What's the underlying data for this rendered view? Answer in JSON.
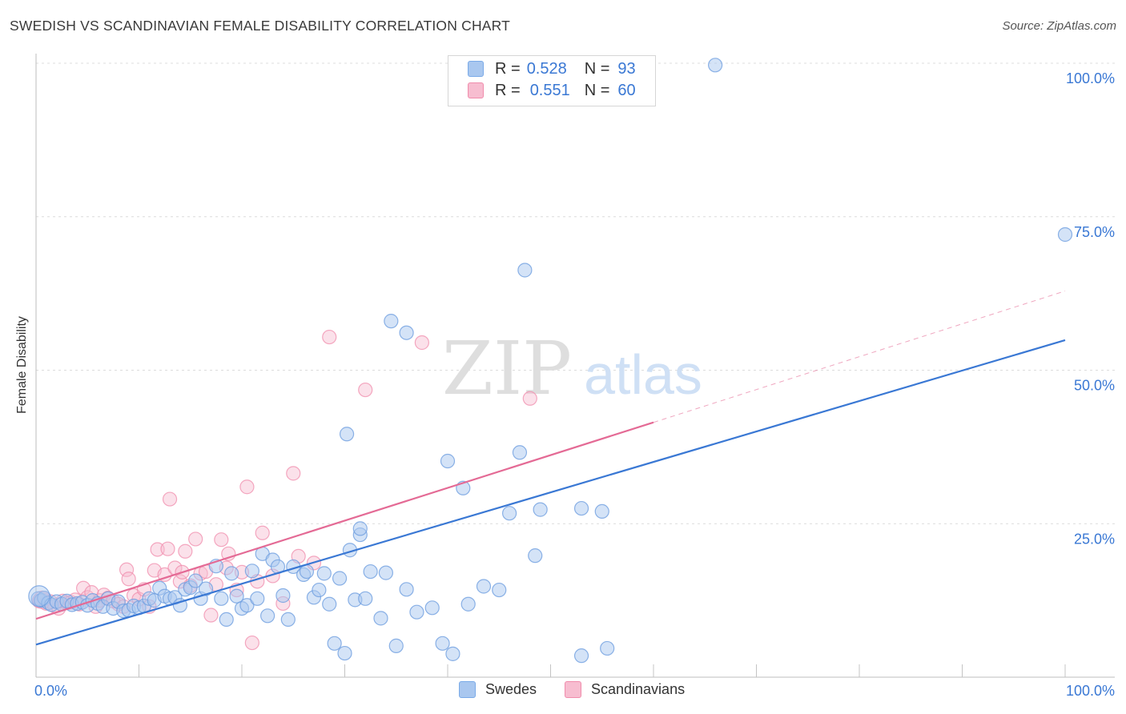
{
  "title": "SWEDISH VS SCANDINAVIAN FEMALE DISABILITY CORRELATION CHART",
  "source": "Source: ZipAtlas.com",
  "watermark": {
    "part1": "ZIP",
    "part2": "atlas"
  },
  "legend": {
    "rows": [
      {
        "r_label": "R =",
        "r_value": "0.528",
        "n_label": "N =",
        "n_value": "93",
        "color": "#7aaae8"
      },
      {
        "r_label": "R =",
        "r_value": "0.551",
        "n_label": "N =",
        "n_value": "60",
        "color": "#f08cac"
      }
    ]
  },
  "bottom_legend": [
    {
      "label": "Swedes",
      "color": "#7aaae8"
    },
    {
      "label": "Scandinavians",
      "color": "#f08cac"
    }
  ],
  "colors": {
    "blue": "#3a78d4",
    "pink": "#e46a95",
    "blue_fill": "#a9c7ef",
    "pink_fill": "#f7bdd0",
    "axis_label": "#3a78d4",
    "grid": "#dcdcdc"
  },
  "chart_data": {
    "type": "scatter",
    "title": "SWEDISH VS SCANDINAVIAN FEMALE DISABILITY CORRELATION CHART",
    "xlabel": "",
    "ylabel": "Female Disability",
    "xlim": [
      0,
      100
    ],
    "ylim": [
      0,
      100
    ],
    "x_tick_labels": [
      "0.0%",
      "100.0%"
    ],
    "y_tick_labels": [
      "25.0%",
      "50.0%",
      "75.0%",
      "100.0%"
    ],
    "y_ticks": [
      25,
      50,
      75,
      100
    ],
    "grid": true,
    "series": [
      {
        "name": "Swedes",
        "R": 0.528,
        "N": 93,
        "color": "#3a78d4",
        "trend": {
          "x0": 0,
          "y0": 5.3,
          "x1": 100,
          "y1": 54.9
        },
        "points": [
          [
            0.2,
            12.8
          ],
          [
            0.5,
            12.5
          ],
          [
            0.8,
            12.9
          ],
          [
            1.2,
            12.1
          ],
          [
            1.5,
            11.8
          ],
          [
            2.0,
            12.3
          ],
          [
            2.5,
            11.9
          ],
          [
            3.0,
            12.4
          ],
          [
            3.5,
            11.8
          ],
          [
            4.0,
            12.0
          ],
          [
            4.5,
            12.2
          ],
          [
            5.0,
            11.7
          ],
          [
            5.5,
            12.5
          ],
          [
            6.0,
            12.0
          ],
          [
            6.5,
            11.5
          ],
          [
            7.0,
            12.8
          ],
          [
            7.5,
            11.2
          ],
          [
            8.0,
            12.3
          ],
          [
            8.5,
            10.8
          ],
          [
            9.0,
            10.9
          ],
          [
            9.5,
            11.6
          ],
          [
            10.0,
            11.3
          ],
          [
            10.5,
            11.6
          ],
          [
            11.0,
            12.8
          ],
          [
            11.5,
            12.5
          ],
          [
            12.0,
            14.5
          ],
          [
            12.5,
            13.2
          ],
          [
            13.0,
            12.8
          ],
          [
            13.5,
            13.0
          ],
          [
            14.0,
            11.7
          ],
          [
            14.5,
            14.3
          ],
          [
            15.0,
            14.6
          ],
          [
            15.5,
            15.7
          ],
          [
            16.0,
            12.8
          ],
          [
            16.5,
            14.4
          ],
          [
            17.5,
            18.1
          ],
          [
            18.0,
            12.8
          ],
          [
            18.5,
            9.4
          ],
          [
            19.0,
            16.9
          ],
          [
            19.5,
            13.2
          ],
          [
            20.0,
            11.2
          ],
          [
            20.5,
            11.7
          ],
          [
            21.0,
            17.3
          ],
          [
            21.5,
            12.8
          ],
          [
            22.0,
            20.1
          ],
          [
            22.5,
            10.0
          ],
          [
            23.0,
            19.1
          ],
          [
            23.5,
            18.0
          ],
          [
            24.0,
            13.3
          ],
          [
            24.5,
            9.4
          ],
          [
            25.0,
            18.0
          ],
          [
            26.0,
            16.7
          ],
          [
            26.3,
            17.2
          ],
          [
            27.0,
            13.0
          ],
          [
            27.5,
            14.2
          ],
          [
            28.0,
            16.9
          ],
          [
            28.5,
            11.9
          ],
          [
            29.0,
            5.5
          ],
          [
            29.5,
            16.1
          ],
          [
            30.0,
            3.9
          ],
          [
            30.5,
            20.7
          ],
          [
            31.0,
            12.6
          ],
          [
            31.5,
            23.2
          ],
          [
            32.0,
            12.8
          ],
          [
            32.5,
            17.2
          ],
          [
            33.5,
            9.6
          ],
          [
            34.0,
            17.0
          ],
          [
            35.0,
            5.1
          ],
          [
            36.0,
            14.3
          ],
          [
            37.0,
            10.6
          ],
          [
            38.5,
            11.3
          ],
          [
            39.5,
            5.5
          ],
          [
            40.5,
            3.8
          ],
          [
            42.0,
            11.9
          ],
          [
            43.5,
            14.8
          ],
          [
            45.0,
            14.2
          ],
          [
            46.0,
            26.7
          ],
          [
            48.5,
            19.8
          ],
          [
            49.0,
            27.3
          ],
          [
            53.0,
            3.5
          ],
          [
            30.2,
            39.6
          ],
          [
            31.5,
            24.2
          ],
          [
            34.5,
            58.0
          ],
          [
            36.0,
            56.1
          ],
          [
            40.0,
            35.2
          ],
          [
            41.5,
            30.8
          ],
          [
            47.0,
            36.6
          ],
          [
            47.5,
            66.3
          ],
          [
            53.0,
            27.5
          ],
          [
            55.0,
            27.0
          ],
          [
            55.5,
            4.7
          ],
          [
            66.0,
            99.7
          ],
          [
            100.0,
            72.1
          ]
        ]
      },
      {
        "name": "Scandinavians",
        "R": 0.551,
        "N": 60,
        "color": "#e46a95",
        "trend": {
          "x0": 0,
          "y0": 9.5,
          "x1": 60,
          "y1": 41.5,
          "dash_x1": 100,
          "dash_y1": 62.9
        },
        "points": [
          [
            0.3,
            12.4
          ],
          [
            0.7,
            12.6
          ],
          [
            1.0,
            12.0
          ],
          [
            1.4,
            12.3
          ],
          [
            1.8,
            11.6
          ],
          [
            2.2,
            11.2
          ],
          [
            2.6,
            12.4
          ],
          [
            3.0,
            12.1
          ],
          [
            3.4,
            12.2
          ],
          [
            3.8,
            12.6
          ],
          [
            4.2,
            11.9
          ],
          [
            4.6,
            14.5
          ],
          [
            5.0,
            13.0
          ],
          [
            5.4,
            13.8
          ],
          [
            5.8,
            11.5
          ],
          [
            6.2,
            12.5
          ],
          [
            6.6,
            13.4
          ],
          [
            7.0,
            12.9
          ],
          [
            7.5,
            12.4
          ],
          [
            8.0,
            11.9
          ],
          [
            8.5,
            11.5
          ],
          [
            8.8,
            17.5
          ],
          [
            9.0,
            16.0
          ],
          [
            9.5,
            13.3
          ],
          [
            10.0,
            12.7
          ],
          [
            10.5,
            14.3
          ],
          [
            11.0,
            11.5
          ],
          [
            11.5,
            17.4
          ],
          [
            11.8,
            20.8
          ],
          [
            12.5,
            16.7
          ],
          [
            12.8,
            20.9
          ],
          [
            13.0,
            29.0
          ],
          [
            13.5,
            17.8
          ],
          [
            14.0,
            15.6
          ],
          [
            14.2,
            17.1
          ],
          [
            14.5,
            20.5
          ],
          [
            15.0,
            14.9
          ],
          [
            15.5,
            22.5
          ],
          [
            16.0,
            16.9
          ],
          [
            16.5,
            17.2
          ],
          [
            17.0,
            10.1
          ],
          [
            17.5,
            15.1
          ],
          [
            18.0,
            22.4
          ],
          [
            18.5,
            17.8
          ],
          [
            18.7,
            20.1
          ],
          [
            19.5,
            14.2
          ],
          [
            20.0,
            17.1
          ],
          [
            20.5,
            31.0
          ],
          [
            21.0,
            5.6
          ],
          [
            21.5,
            15.6
          ],
          [
            22.0,
            23.5
          ],
          [
            23.0,
            16.5
          ],
          [
            24.0,
            12.0
          ],
          [
            25.0,
            33.2
          ],
          [
            25.5,
            19.7
          ],
          [
            27.0,
            18.6
          ],
          [
            28.5,
            55.4
          ],
          [
            32.0,
            46.8
          ],
          [
            37.5,
            54.5
          ],
          [
            48.0,
            45.4
          ]
        ]
      }
    ]
  }
}
